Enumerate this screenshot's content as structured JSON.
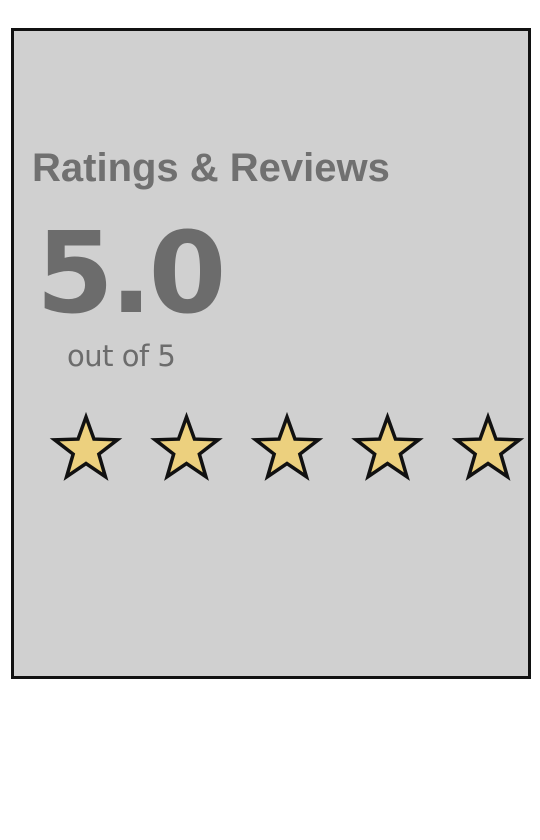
{
  "ratings": {
    "title": "Ratings & Reviews",
    "score": "5.0",
    "scale_label": "out of 5",
    "stars": {
      "filled": 5,
      "total": 5,
      "icon": "star-icon",
      "fill_color": "#ecd07e",
      "stroke_color": "#111111"
    }
  },
  "colors": {
    "panel_background": "#d0d0d0",
    "panel_border": "#111111",
    "text_muted": "#6c6c6c"
  }
}
